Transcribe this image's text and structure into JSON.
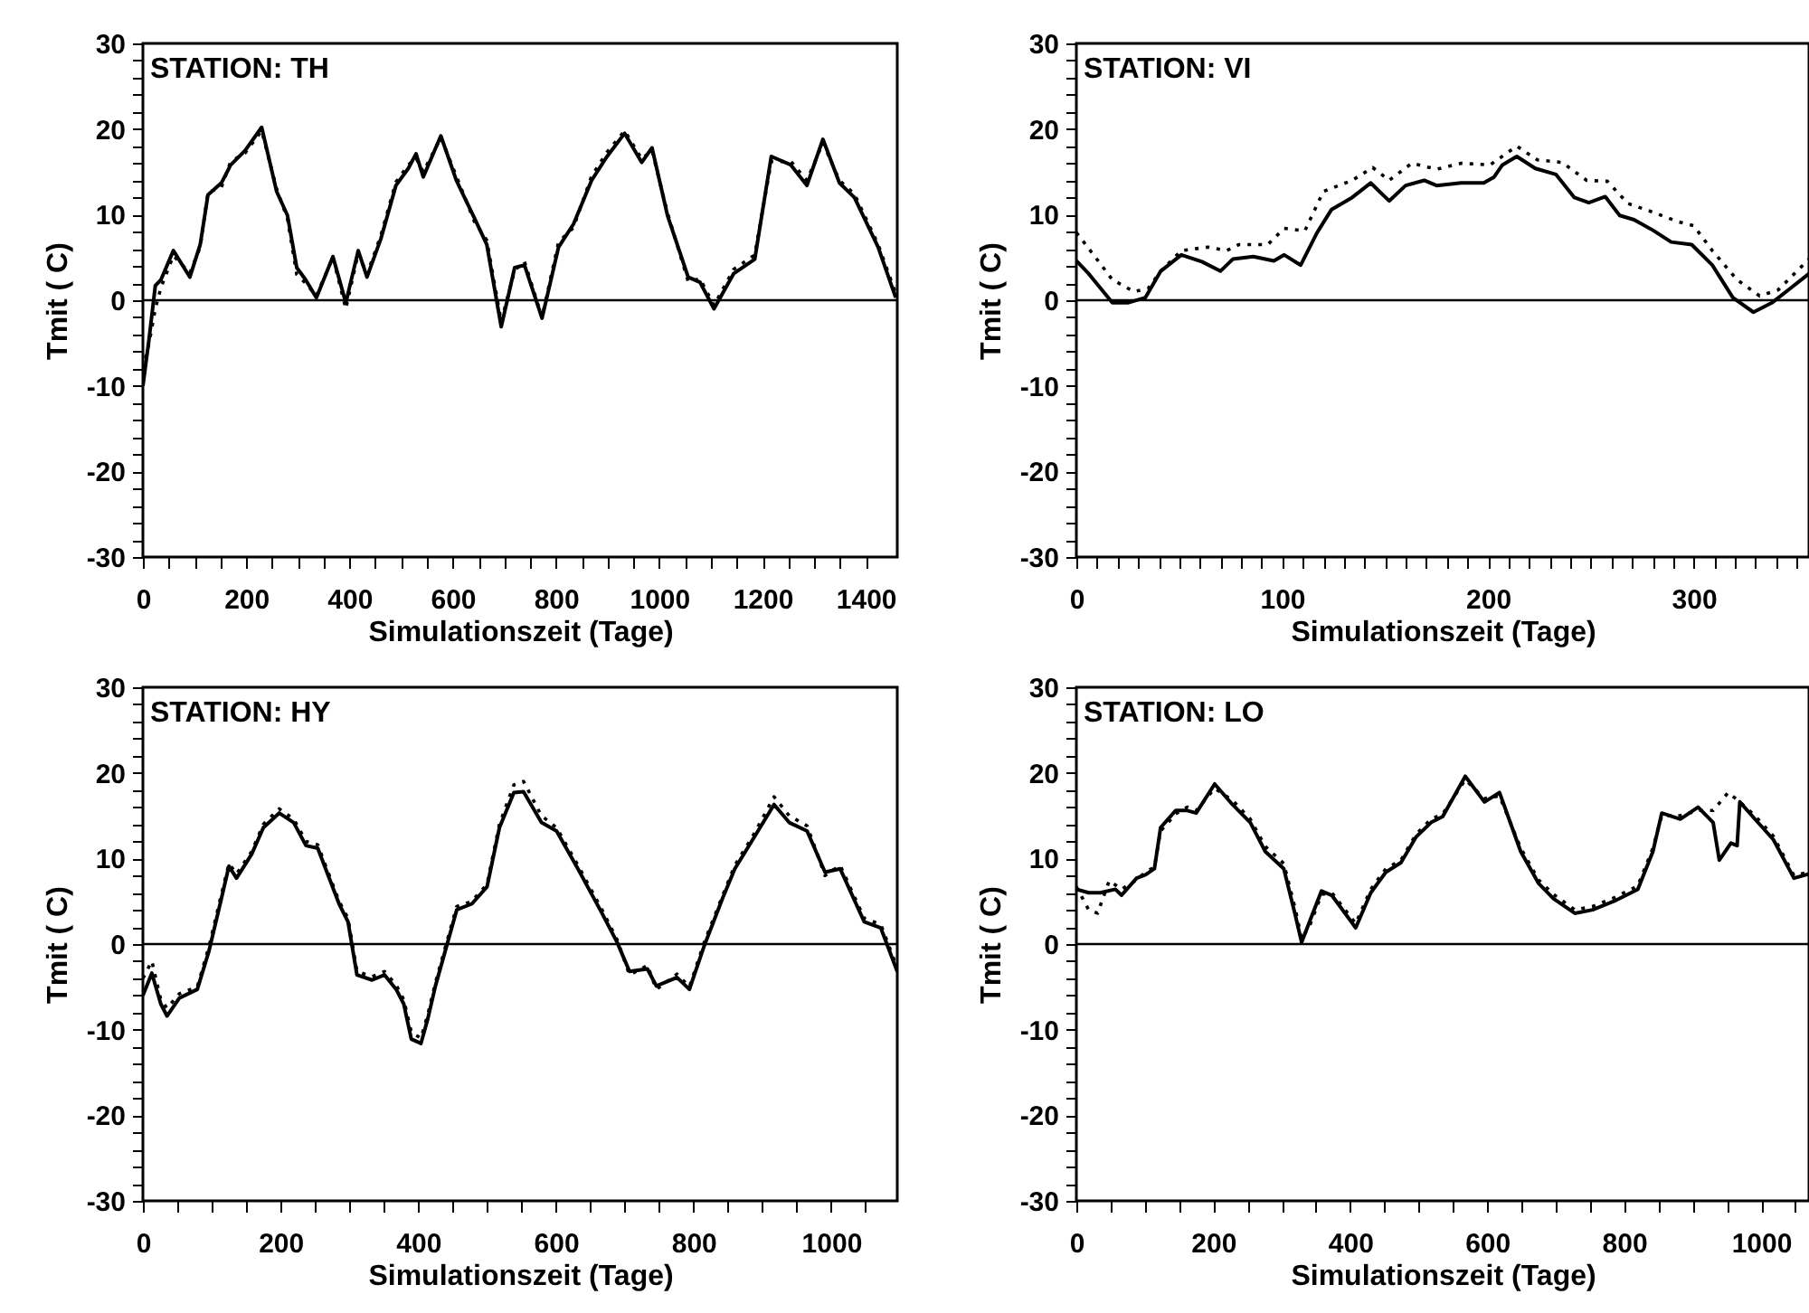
{
  "chart_data": [
    {
      "type": "line",
      "title": "STATION: TH",
      "xlabel": "Simulationszeit (Tage)",
      "ylabel": "Tmit ( C)",
      "xlim": [
        0,
        1461
      ],
      "ylim": [
        -30,
        30
      ],
      "xticks": [
        0,
        {
          "value": 50,
          "label": null
        },
        {
          "value": 100,
          "label": null
        },
        {
          "value": 150,
          "label": null
        },
        200,
        {
          "value": 250,
          "label": null
        },
        {
          "value": 300,
          "label": null
        },
        {
          "value": 350,
          "label": null
        },
        400,
        {
          "value": 450,
          "label": null
        },
        {
          "value": 500,
          "label": null
        },
        {
          "value": 550,
          "label": null
        },
        600,
        {
          "value": 650,
          "label": null
        },
        {
          "value": 700,
          "label": null
        },
        {
          "value": 750,
          "label": null
        },
        800,
        {
          "value": 850,
          "label": null
        },
        {
          "value": 900,
          "label": null
        },
        {
          "value": 950,
          "label": null
        },
        1000,
        {
          "value": 1050,
          "label": null
        },
        {
          "value": 1100,
          "label": null
        },
        {
          "value": 1150,
          "label": null
        },
        1200,
        {
          "value": 1250,
          "label": null
        },
        {
          "value": 1300,
          "label": null
        },
        {
          "value": 1350,
          "label": null
        },
        1400
      ],
      "yticks": [
        -30,
        {
          "value": -28,
          "label": null
        },
        {
          "value": -26,
          "label": null
        },
        {
          "value": -24,
          "label": null
        },
        {
          "value": -22,
          "label": null
        },
        -20,
        {
          "value": -18,
          "label": null
        },
        {
          "value": -16,
          "label": null
        },
        {
          "value": -14,
          "label": null
        },
        {
          "value": -12,
          "label": null
        },
        -10,
        {
          "value": -8,
          "label": null
        },
        {
          "value": -6,
          "label": null
        },
        {
          "value": -4,
          "label": null
        },
        {
          "value": -2,
          "label": null
        },
        0,
        {
          "value": 2,
          "label": null
        },
        {
          "value": 4,
          "label": null
        },
        {
          "value": 6,
          "label": null
        },
        {
          "value": 8,
          "label": null
        },
        10,
        {
          "value": 12,
          "label": null
        },
        {
          "value": 14,
          "label": null
        },
        {
          "value": 16,
          "label": null
        },
        {
          "value": 18,
          "label": null
        },
        20,
        {
          "value": 22,
          "label": null
        },
        {
          "value": 24,
          "label": null
        },
        {
          "value": 26,
          "label": null
        },
        {
          "value": 28,
          "label": null
        },
        30
      ],
      "grid": false,
      "ref_lines": [
        {
          "axis": "y",
          "value": 0,
          "color": "#000000"
        }
      ],
      "series": [
        {
          "color": "#000000",
          "line_style": "solid",
          "x": [
            0,
            12,
            24,
            35,
            59,
            91,
            111,
            126,
            152,
            170,
            198,
            230,
            259,
            280,
            298,
            315,
            336,
            368,
            393,
            417,
            434,
            461,
            490,
            514,
            529,
            543,
            577,
            607,
            642,
            666,
            694,
            720,
            739,
            773,
            805,
            834,
            869,
            899,
            933,
            966,
            986,
            1016,
            1056,
            1079,
            1106,
            1144,
            1185,
            1217,
            1255,
            1286,
            1317,
            1349,
            1378,
            1424,
            1458
          ],
          "values": [
            -10,
            -4.5,
            1.7,
            2.4,
            5.8,
            2.7,
            6.5,
            12.3,
            13.7,
            15.8,
            17.5,
            20.2,
            12.7,
            9.9,
            3.8,
            2.4,
            0.3,
            5.1,
            -0.3,
            5.8,
            2.7,
            7.2,
            13.4,
            15.4,
            17.1,
            14.4,
            19.2,
            14,
            9.6,
            6.5,
            -3.1,
            3.8,
            4.1,
            -2.1,
            6.2,
            8.9,
            14,
            16.8,
            19.5,
            16.1,
            17.8,
            9.9,
            2.7,
            2.1,
            -1,
            3.1,
            4.8,
            16.8,
            15.8,
            13.4,
            18.8,
            13.7,
            12,
            6.2,
            0.3
          ]
        },
        {
          "color": "#000000",
          "line_style": "dotted",
          "x": [
            0,
            12,
            24,
            35,
            59,
            91,
            111,
            126,
            152,
            170,
            198,
            230,
            259,
            280,
            298,
            315,
            336,
            368,
            393,
            417,
            434,
            461,
            490,
            514,
            529,
            543,
            577,
            607,
            642,
            666,
            694,
            720,
            739,
            773,
            805,
            834,
            869,
            899,
            933,
            966,
            986,
            1016,
            1056,
            1079,
            1106,
            1144,
            1185,
            1217,
            1255,
            1286,
            1317,
            1349,
            1378,
            1424,
            1458
          ],
          "values": [
            -8,
            -5,
            -1,
            1.5,
            5.2,
            3.2,
            6.2,
            12.6,
            13.2,
            16.2,
            17.2,
            19.8,
            13,
            9.5,
            3,
            2,
            0.5,
            5,
            -1,
            5.5,
            3,
            7.6,
            13.8,
            15.8,
            16.6,
            15,
            19,
            14.5,
            9.2,
            7,
            -2.5,
            3.5,
            4.5,
            -2,
            6.8,
            8.5,
            14.5,
            17.3,
            19.8,
            16.5,
            17.5,
            10.2,
            2.2,
            2.5,
            -0.6,
            3.6,
            5.3,
            16.2,
            16.2,
            14,
            18.4,
            14,
            12.4,
            6.5,
            0.8
          ]
        }
      ]
    },
    {
      "type": "line",
      "title": "STATION: VI",
      "xlabel": "Simulationszeit (Tage)",
      "ylabel": "Tmit ( C)",
      "xlim": [
        0,
        356
      ],
      "ylim": [
        -30,
        30
      ],
      "xticks": [
        0,
        {
          "value": 10,
          "label": null
        },
        {
          "value": 20,
          "label": null
        },
        {
          "value": 30,
          "label": null
        },
        {
          "value": 40,
          "label": null
        },
        {
          "value": 50,
          "label": null
        },
        {
          "value": 60,
          "label": null
        },
        {
          "value": 70,
          "label": null
        },
        {
          "value": 80,
          "label": null
        },
        {
          "value": 90,
          "label": null
        },
        100,
        {
          "value": 110,
          "label": null
        },
        {
          "value": 120,
          "label": null
        },
        {
          "value": 130,
          "label": null
        },
        {
          "value": 140,
          "label": null
        },
        {
          "value": 150,
          "label": null
        },
        {
          "value": 160,
          "label": null
        },
        {
          "value": 170,
          "label": null
        },
        {
          "value": 180,
          "label": null
        },
        {
          "value": 190,
          "label": null
        },
        200,
        {
          "value": 210,
          "label": null
        },
        {
          "value": 220,
          "label": null
        },
        {
          "value": 230,
          "label": null
        },
        {
          "value": 240,
          "label": null
        },
        {
          "value": 250,
          "label": null
        },
        {
          "value": 260,
          "label": null
        },
        {
          "value": 270,
          "label": null
        },
        {
          "value": 280,
          "label": null
        },
        {
          "value": 290,
          "label": null
        },
        300,
        {
          "value": 310,
          "label": null
        },
        {
          "value": 320,
          "label": null
        },
        {
          "value": 330,
          "label": null
        },
        {
          "value": 340,
          "label": null
        },
        {
          "value": 350,
          "label": null
        }
      ],
      "yticks": [
        -30,
        {
          "value": -28,
          "label": null
        },
        {
          "value": -26,
          "label": null
        },
        {
          "value": -24,
          "label": null
        },
        {
          "value": -22,
          "label": null
        },
        -20,
        {
          "value": -18,
          "label": null
        },
        {
          "value": -16,
          "label": null
        },
        {
          "value": -14,
          "label": null
        },
        {
          "value": -12,
          "label": null
        },
        -10,
        {
          "value": -8,
          "label": null
        },
        {
          "value": -6,
          "label": null
        },
        {
          "value": -4,
          "label": null
        },
        {
          "value": -2,
          "label": null
        },
        0,
        {
          "value": 2,
          "label": null
        },
        {
          "value": 4,
          "label": null
        },
        {
          "value": 6,
          "label": null
        },
        {
          "value": 8,
          "label": null
        },
        10,
        {
          "value": 12,
          "label": null
        },
        {
          "value": 14,
          "label": null
        },
        {
          "value": 16,
          "label": null
        },
        {
          "value": 18,
          "label": null
        },
        20,
        {
          "value": 22,
          "label": null
        },
        {
          "value": 24,
          "label": null
        },
        {
          "value": 26,
          "label": null
        },
        {
          "value": 28,
          "label": null
        },
        30
      ],
      "grid": false,
      "ref_lines": [
        {
          "axis": "y",
          "value": 0,
          "color": "#000000"
        }
      ],
      "series": [
        {
          "color": "#000000",
          "line_style": "solid",
          "x": [
            0,
            6,
            17.5,
            25,
            33.5,
            41,
            51,
            61,
            70,
            76,
            86,
            96,
            101,
            109,
            117,
            124,
            134,
            143,
            152,
            160,
            169,
            175,
            187,
            198,
            203,
            207,
            214,
            223,
            233,
            242,
            249,
            257,
            264,
            271,
            280,
            289,
            299,
            309,
            319,
            329,
            338,
            347,
            356
          ],
          "values": [
            4.6,
            3.1,
            -0.3,
            -0.3,
            0.3,
            3.4,
            5.3,
            4.5,
            3.4,
            4.8,
            5.1,
            4.6,
            5.3,
            4.1,
            7.9,
            10.6,
            12,
            13.7,
            11.6,
            13.4,
            14,
            13.4,
            13.7,
            13.7,
            14.4,
            15.8,
            16.8,
            15.4,
            14.7,
            12,
            11.4,
            12.1,
            9.9,
            9.4,
            8.2,
            6.8,
            6.5,
            4.1,
            0.3,
            -1.4,
            -0.3,
            1.4,
            3.1
          ]
        },
        {
          "color": "#000000",
          "line_style": "dotted",
          "x": [
            0,
            9,
            17.5,
            28,
            35,
            41,
            51,
            64,
            73,
            79,
            93,
            101,
            111,
            120,
            134,
            144,
            152,
            163,
            175,
            187,
            201,
            214,
            224,
            236,
            248,
            258,
            268,
            280,
            292,
            300,
            309,
            321,
            332,
            341,
            356
          ],
          "values": [
            7.9,
            5.1,
            2.4,
            1,
            1.4,
            3.4,
            5.8,
            6.2,
            5.8,
            6.5,
            6.5,
            8.4,
            8.1,
            12.7,
            14,
            15.5,
            14,
            16,
            15.3,
            16,
            15.8,
            18,
            16.4,
            16.1,
            14,
            13.9,
            11.3,
            10.3,
            9.2,
            8.7,
            5.8,
            2.4,
            0.5,
            1.2,
            4.8
          ]
        }
      ]
    },
    {
      "type": "line",
      "title": "STATION: HY",
      "xlabel": "Simulationszeit (Tage)",
      "ylabel": "Tmit ( C)",
      "xlim": [
        0,
        1096
      ],
      "ylim": [
        -30,
        30
      ],
      "xticks": [
        0,
        {
          "value": 50,
          "label": null
        },
        {
          "value": 100,
          "label": null
        },
        {
          "value": 150,
          "label": null
        },
        200,
        {
          "value": 250,
          "label": null
        },
        {
          "value": 300,
          "label": null
        },
        {
          "value": 350,
          "label": null
        },
        400,
        {
          "value": 450,
          "label": null
        },
        {
          "value": 500,
          "label": null
        },
        {
          "value": 550,
          "label": null
        },
        600,
        {
          "value": 650,
          "label": null
        },
        {
          "value": 700,
          "label": null
        },
        {
          "value": 750,
          "label": null
        },
        800,
        {
          "value": 850,
          "label": null
        },
        {
          "value": 900,
          "label": null
        },
        {
          "value": 950,
          "label": null
        },
        1000,
        {
          "value": 1050,
          "label": null
        }
      ],
      "yticks": [
        -30,
        {
          "value": -28,
          "label": null
        },
        {
          "value": -26,
          "label": null
        },
        {
          "value": -24,
          "label": null
        },
        {
          "value": -22,
          "label": null
        },
        -20,
        {
          "value": -18,
          "label": null
        },
        {
          "value": -16,
          "label": null
        },
        {
          "value": -14,
          "label": null
        },
        {
          "value": -12,
          "label": null
        },
        -10,
        {
          "value": -8,
          "label": null
        },
        {
          "value": -6,
          "label": null
        },
        {
          "value": -4,
          "label": null
        },
        {
          "value": -2,
          "label": null
        },
        0,
        {
          "value": 2,
          "label": null
        },
        {
          "value": 4,
          "label": null
        },
        {
          "value": 6,
          "label": null
        },
        {
          "value": 8,
          "label": null
        },
        10,
        {
          "value": 12,
          "label": null
        },
        {
          "value": 14,
          "label": null
        },
        {
          "value": 16,
          "label": null
        },
        {
          "value": 18,
          "label": null
        },
        20,
        {
          "value": 22,
          "label": null
        },
        {
          "value": 24,
          "label": null
        },
        {
          "value": 26,
          "label": null
        },
        {
          "value": 28,
          "label": null
        },
        30
      ],
      "grid": false,
      "ref_lines": [
        {
          "axis": "y",
          "value": 0,
          "color": "#000000"
        }
      ],
      "series": [
        {
          "color": "#000000",
          "line_style": "solid",
          "x": [
            0,
            13,
            26,
            35,
            53,
            79,
            96,
            114,
            125,
            136,
            158,
            175,
            198,
            219,
            237,
            254,
            285,
            298,
            311,
            333,
            351,
            368,
            379,
            390,
            404,
            414,
            425,
            456,
            478,
            500,
            518,
            539,
            553,
            579,
            601,
            632,
            667,
            689,
            707,
            733,
            746,
            776,
            794,
            816,
            842,
            860,
            886,
            917,
            939,
            965,
            991,
            1013,
            1048,
            1072,
            1096
          ],
          "values": [
            -6,
            -3.4,
            -7,
            -8.4,
            -6.3,
            -5.3,
            -0.8,
            5.3,
            9.1,
            7.7,
            10.5,
            13.6,
            15.3,
            14.2,
            11.5,
            11.2,
            4.7,
            2.6,
            -3.6,
            -4.2,
            -3.6,
            -5.3,
            -7,
            -11.1,
            -11.6,
            -8.7,
            -4.9,
            4,
            4.7,
            6.7,
            13.6,
            17.7,
            17.8,
            14.2,
            13.2,
            8.8,
            3.6,
            0.2,
            -3.2,
            -2.9,
            -4.9,
            -3.9,
            -5.3,
            -0.1,
            5.3,
            8.8,
            12.2,
            16.3,
            14.2,
            13.2,
            8.4,
            8.8,
            2.6,
            1.9,
            -3.2
          ]
        },
        {
          "color": "#000000",
          "line_style": "dotted",
          "x": [
            0,
            13,
            26,
            35,
            53,
            79,
            96,
            114,
            125,
            136,
            158,
            175,
            198,
            219,
            237,
            254,
            285,
            298,
            311,
            333,
            351,
            368,
            379,
            390,
            404,
            414,
            425,
            456,
            478,
            500,
            518,
            539,
            553,
            579,
            601,
            632,
            667,
            689,
            707,
            733,
            746,
            776,
            794,
            816,
            842,
            860,
            886,
            917,
            939,
            965,
            991,
            1013,
            1048,
            1072,
            1096
          ],
          "values": [
            -4,
            -2,
            -6.5,
            -7.5,
            -5.8,
            -5,
            -0.3,
            5.8,
            9.4,
            8.2,
            10.8,
            14,
            15.8,
            14.6,
            12,
            11.6,
            5,
            3,
            -3.2,
            -3.8,
            -3.2,
            -4.8,
            -6.5,
            -10.3,
            -11,
            -8.2,
            -4.5,
            4.4,
            5,
            7,
            14,
            18.6,
            19,
            15,
            13.6,
            9.2,
            4,
            0.5,
            -3.6,
            -2.5,
            -5.3,
            -3.5,
            -5,
            0.3,
            5.6,
            9.2,
            12.6,
            17.2,
            15,
            13.8,
            8,
            9.2,
            3,
            2.3,
            -2.8
          ]
        }
      ]
    },
    {
      "type": "line",
      "title": "STATION: LO",
      "xlabel": "Simulationszeit (Tage)",
      "ylabel": "Tmit ( C)",
      "xlim": [
        0,
        1070
      ],
      "ylim": [
        -30,
        30
      ],
      "xticks": [
        0,
        {
          "value": 50,
          "label": null
        },
        {
          "value": 100,
          "label": null
        },
        {
          "value": 150,
          "label": null
        },
        200,
        {
          "value": 250,
          "label": null
        },
        {
          "value": 300,
          "label": null
        },
        {
          "value": 350,
          "label": null
        },
        400,
        {
          "value": 450,
          "label": null
        },
        {
          "value": 500,
          "label": null
        },
        {
          "value": 550,
          "label": null
        },
        600,
        {
          "value": 650,
          "label": null
        },
        {
          "value": 700,
          "label": null
        },
        {
          "value": 750,
          "label": null
        },
        800,
        {
          "value": 850,
          "label": null
        },
        {
          "value": 900,
          "label": null
        },
        {
          "value": 950,
          "label": null
        },
        1000,
        {
          "value": 1050,
          "label": null
        }
      ],
      "yticks": [
        -30,
        {
          "value": -28,
          "label": null
        },
        {
          "value": -26,
          "label": null
        },
        {
          "value": -24,
          "label": null
        },
        {
          "value": -22,
          "label": null
        },
        -20,
        {
          "value": -18,
          "label": null
        },
        {
          "value": -16,
          "label": null
        },
        {
          "value": -14,
          "label": null
        },
        {
          "value": -12,
          "label": null
        },
        -10,
        {
          "value": -8,
          "label": null
        },
        {
          "value": -6,
          "label": null
        },
        {
          "value": -4,
          "label": null
        },
        {
          "value": -2,
          "label": null
        },
        0,
        {
          "value": 2,
          "label": null
        },
        {
          "value": 4,
          "label": null
        },
        {
          "value": 6,
          "label": null
        },
        {
          "value": 8,
          "label": null
        },
        10,
        {
          "value": 12,
          "label": null
        },
        {
          "value": 14,
          "label": null
        },
        {
          "value": 16,
          "label": null
        },
        {
          "value": 18,
          "label": null
        },
        20,
        {
          "value": 22,
          "label": null
        },
        {
          "value": 24,
          "label": null
        },
        {
          "value": 26,
          "label": null
        },
        {
          "value": 28,
          "label": null
        },
        30
      ],
      "grid": false,
      "ref_lines": [
        {
          "axis": "y",
          "value": 0,
          "color": "#000000"
        }
      ],
      "series": [
        {
          "color": "#000000",
          "line_style": "solid",
          "x": [
            0,
            18,
            35,
            57,
            66,
            88,
            101,
            114,
            123,
            145,
            162,
            175,
            202,
            228,
            254,
            276,
            303,
            320,
            329,
            342,
            358,
            373,
            408,
            430,
            452,
            474,
            496,
            518,
            535,
            568,
            596,
            618,
            649,
            675,
            697,
            728,
            754,
            785,
            820,
            842,
            855,
            882,
            908,
            930,
            939,
            956,
            965,
            969,
            991,
            1018,
            1048,
            1070
          ],
          "values": [
            6.4,
            6,
            6,
            6.4,
            5.7,
            7.7,
            8.1,
            8.8,
            13.6,
            15.6,
            15.6,
            15.3,
            18.7,
            16.3,
            14.2,
            10.8,
            8.8,
            3.3,
            0.2,
            2.9,
            6.2,
            5.7,
            1.9,
            6,
            8.4,
            9.5,
            12.5,
            14.2,
            14.9,
            19.6,
            16.6,
            17.7,
            10.8,
            7.1,
            5.3,
            3.6,
            4,
            5,
            6.4,
            10.8,
            15.3,
            14.6,
            16,
            14.2,
            9.8,
            11.8,
            11.5,
            16.6,
            14.6,
            12.2,
            7.7,
            8.2
          ]
        },
        {
          "color": "#000000",
          "line_style": "dotted",
          "x": [
            0,
            18,
            31,
            48,
            66,
            88,
            101,
            114,
            123,
            145,
            162,
            175,
            202,
            228,
            254,
            276,
            303,
            320,
            329,
            342,
            358,
            373,
            408,
            430,
            452,
            474,
            496,
            518,
            535,
            568,
            596,
            618,
            649,
            675,
            697,
            728,
            754,
            785,
            820,
            842,
            855,
            882,
            908,
            930,
            952,
            969,
            991,
            1018,
            1048,
            1070
          ],
          "values": [
            6.7,
            4,
            3.6,
            7.4,
            6.4,
            7.5,
            8.4,
            9,
            13.2,
            15.2,
            16,
            15.6,
            18.2,
            16.8,
            14.6,
            11.4,
            9.4,
            4,
            0.6,
            2.4,
            5.8,
            6,
            2.4,
            6.4,
            8.8,
            9.8,
            12.8,
            14.6,
            15.2,
            19.2,
            17,
            17.3,
            11.2,
            7.5,
            5.8,
            4,
            4.4,
            5.4,
            6.8,
            11.2,
            15,
            15,
            15.6,
            15.6,
            17.7,
            16.6,
            15,
            12.6,
            8,
            8.4
          ]
        }
      ]
    }
  ]
}
